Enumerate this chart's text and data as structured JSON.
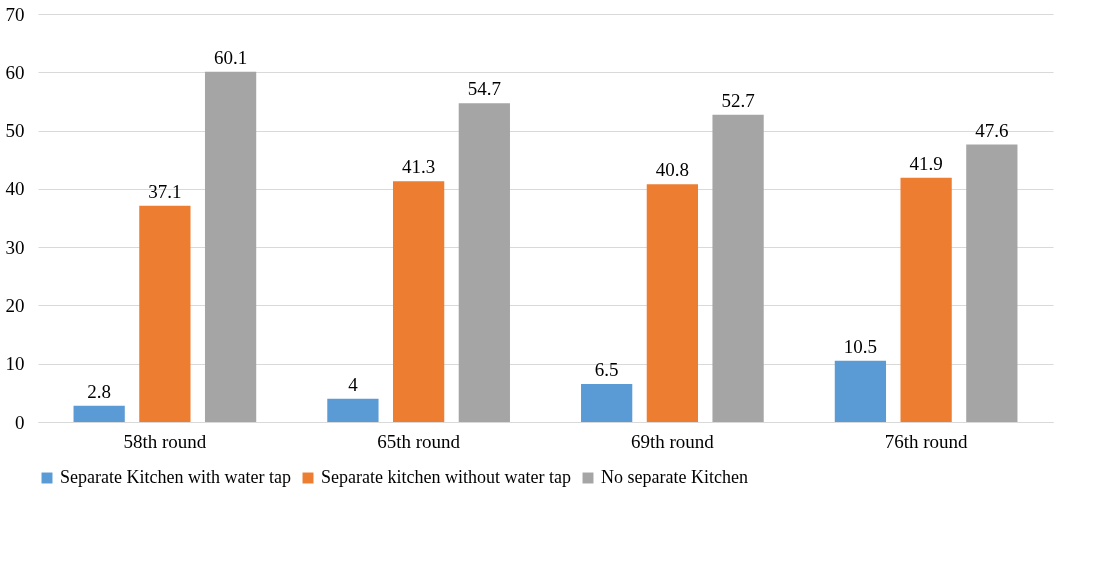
{
  "chart_data": {
    "type": "bar",
    "categories": [
      "58th round",
      "65th round",
      "69th round",
      "76th round"
    ],
    "series": [
      {
        "name": "Separate Kitchen with water tap",
        "color": "#5b9bd5",
        "values": [
          2.8,
          4,
          6.5,
          10.5
        ]
      },
      {
        "name": "Separate kitchen without water tap",
        "color": "#ed7d31",
        "values": [
          37.1,
          41.3,
          40.8,
          41.9
        ]
      },
      {
        "name": "No separate Kitchen",
        "color": "#a5a5a5",
        "values": [
          60.1,
          54.7,
          52.7,
          47.6
        ]
      }
    ],
    "ylim": [
      0,
      70
    ],
    "yticks": [
      0,
      10,
      20,
      30,
      40,
      50,
      60,
      70
    ],
    "grid": "y",
    "legend": "bottom",
    "data_labels": true
  }
}
